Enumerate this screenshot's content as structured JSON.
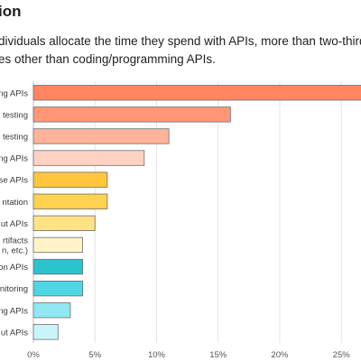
{
  "heading": "ion",
  "subtitle": {
    "line1": "dividuals allocate the time they spend with APIs, more than two-third",
    "line2": "es other than coding/programming APIs."
  },
  "chart_data": {
    "type": "bar",
    "orientation": "horizontal",
    "categories": [
      "ng APIs",
      "testing",
      "testing",
      "ng APIs",
      "se APIs",
      "ntation",
      "ut APIs",
      "rtifacts\nn, etc.)",
      "on APIs",
      "nitoring",
      "ing APIs",
      "ut APIs"
    ],
    "values": [
      27,
      16,
      11,
      9,
      6,
      6,
      5,
      4,
      4,
      4,
      3,
      2
    ],
    "colors": [
      "#ff8660",
      "#ff9675",
      "#ffb39a",
      "#ffd2c3",
      "#ffc53d",
      "#ffd24f",
      "#ffe284",
      "#fff3c7",
      "#2dc2cf",
      "#4fd6e4",
      "#8fe8f2",
      "#c9f5fa"
    ],
    "xlim": [
      0,
      26.6
    ],
    "xticks": [
      0,
      5,
      10,
      15,
      20,
      25
    ],
    "xtick_labels": [
      "0%",
      "5%",
      "10%",
      "15%",
      "20%",
      "25%"
    ],
    "grid": "vertical",
    "title": "",
    "xlabel": "",
    "ylabel": ""
  }
}
